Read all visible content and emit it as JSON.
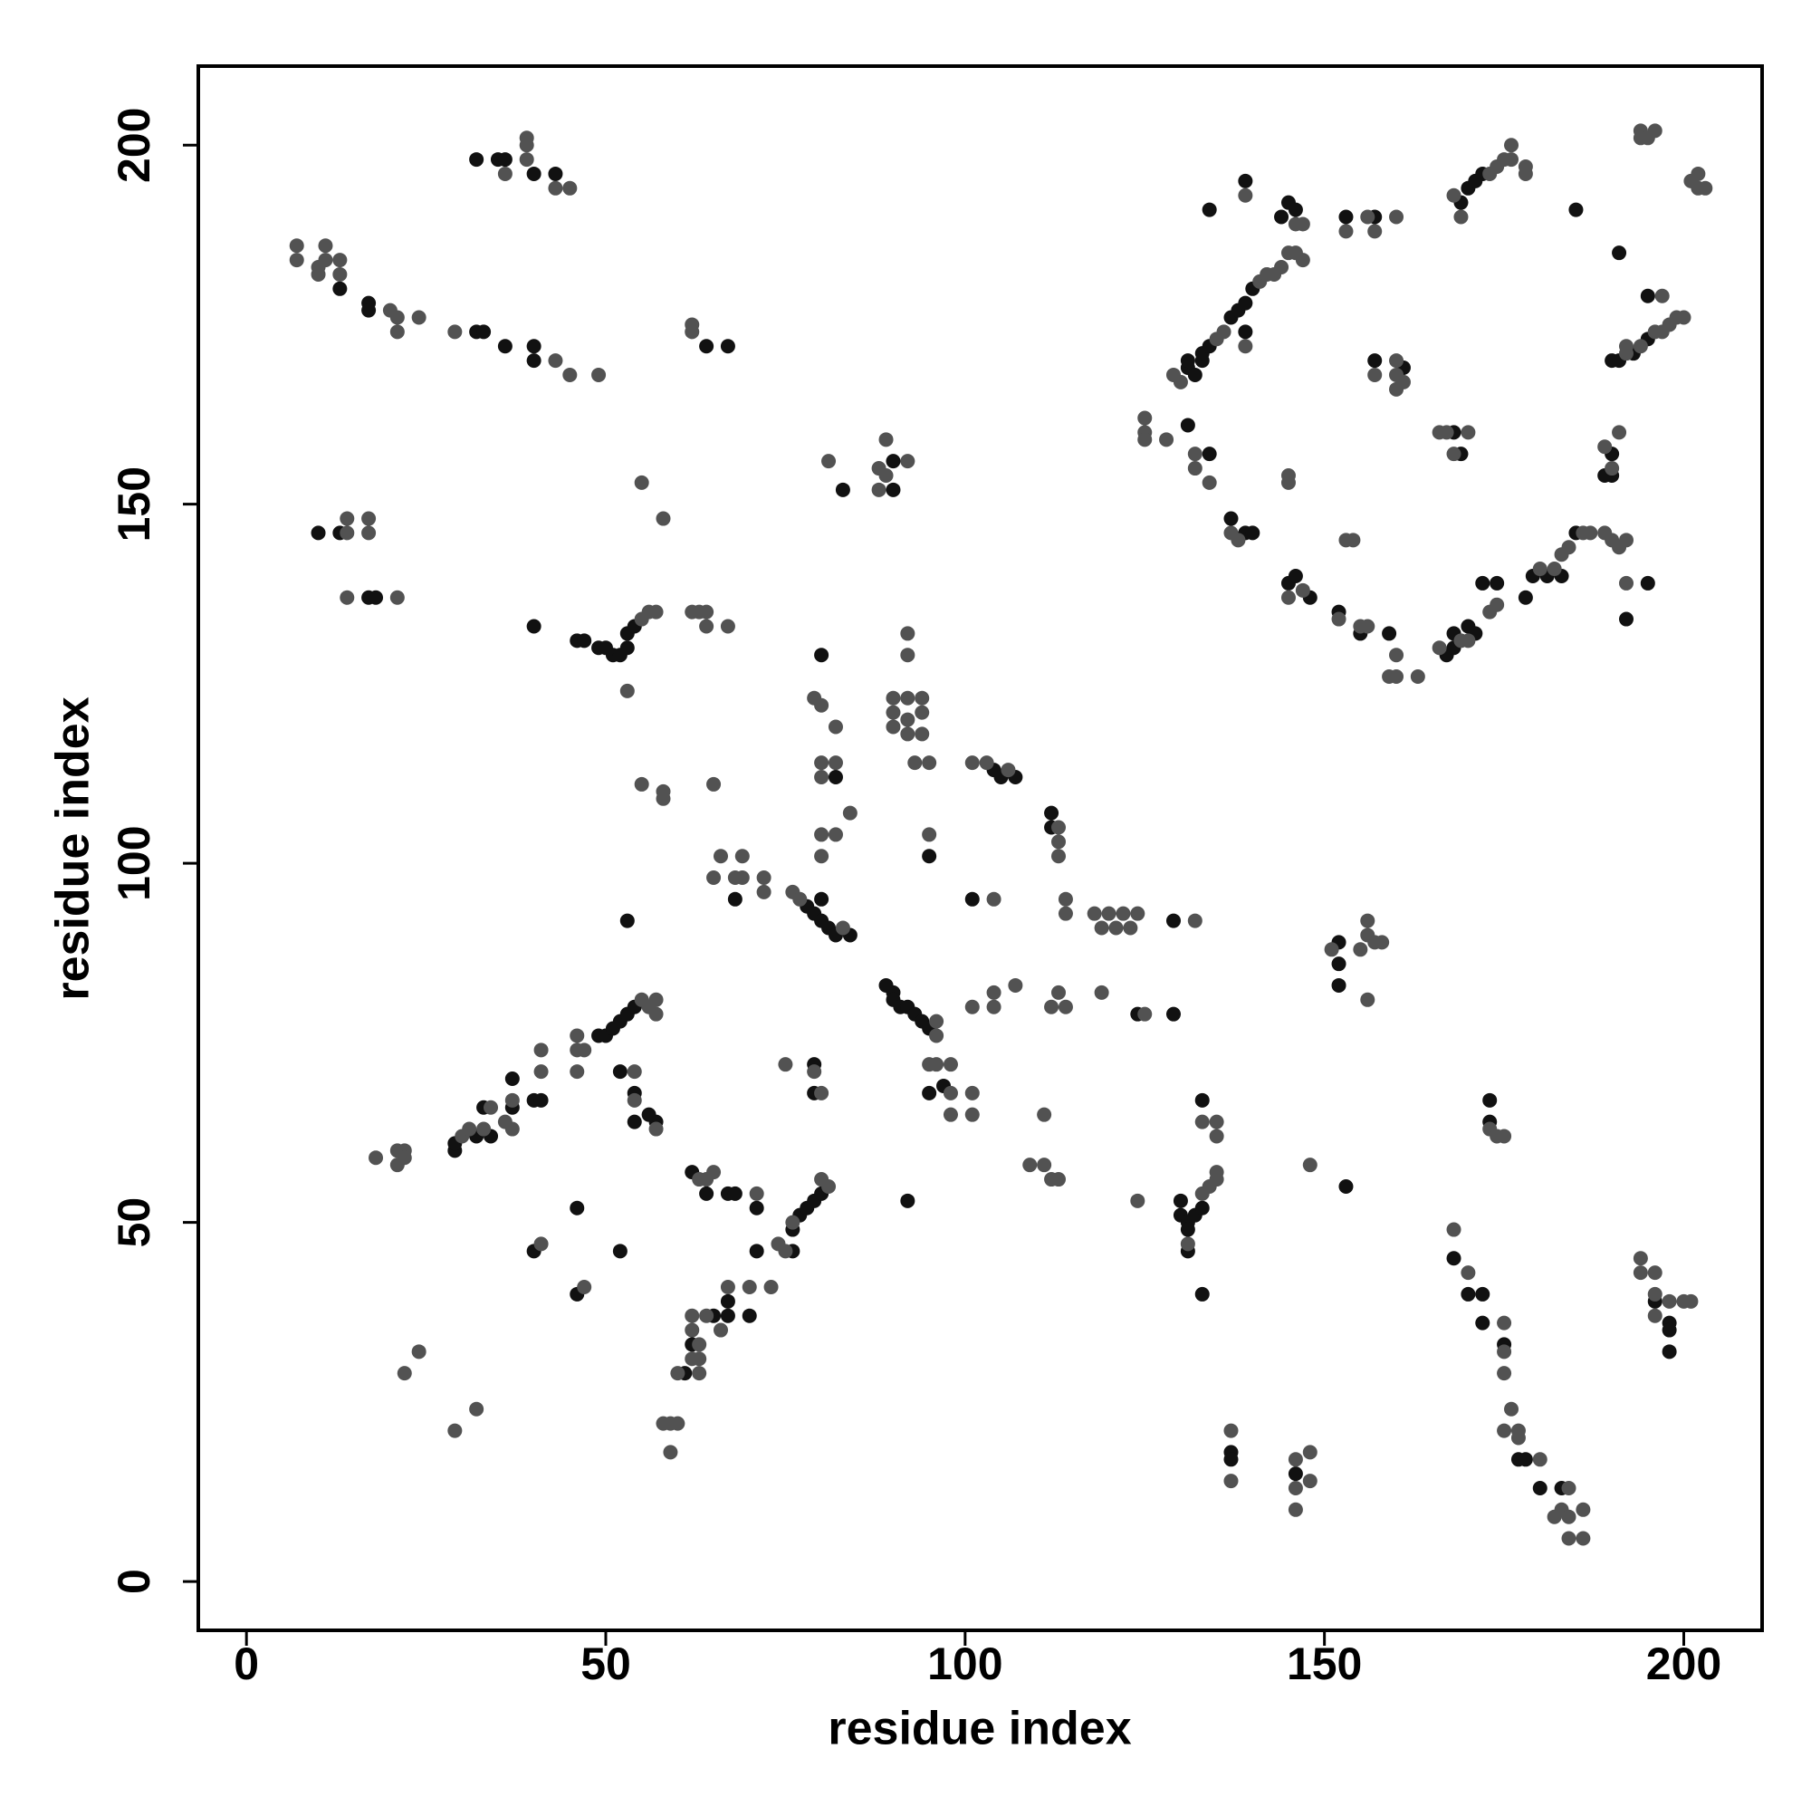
{
  "chart_data": {
    "type": "scatter",
    "xlabel": "residue index",
    "ylabel": "residue index",
    "xlim": [
      -6.7,
      210.9
    ],
    "ylim": [
      -6.8,
      211
    ],
    "xticks": [
      0,
      50,
      100,
      150,
      200
    ],
    "yticks": [
      0,
      50,
      100,
      150,
      200
    ],
    "grid": false,
    "series": [
      {
        "color": "#111111",
        "x": [
          32,
          35,
          36,
          40,
          43,
          10,
          13,
          17,
          18,
          13,
          17,
          17,
          32,
          33,
          36,
          40,
          40,
          40,
          46,
          47,
          49,
          50,
          51,
          52,
          53,
          53,
          54,
          64,
          67,
          83,
          90,
          90,
          80,
          82,
          95,
          104,
          105,
          107,
          112,
          112,
          101,
          78,
          79,
          80,
          80,
          81,
          82,
          84,
          68,
          89,
          90,
          90,
          91,
          92,
          93,
          94,
          95,
          95,
          129,
          53,
          33,
          37,
          40,
          41,
          49,
          50,
          51,
          52,
          53,
          54,
          52,
          54,
          29,
          62,
          64,
          67,
          68,
          71,
          46,
          52,
          40,
          46,
          76,
          77,
          78,
          79,
          80,
          76,
          71,
          67,
          70,
          67,
          65,
          62,
          61,
          79,
          79,
          92,
          130,
          130,
          131,
          131,
          132,
          133,
          131,
          133,
          133,
          137,
          137,
          146,
          152,
          152,
          152,
          153,
          168,
          170,
          172,
          172,
          173,
          173,
          175,
          177,
          178,
          180,
          183,
          196,
          198,
          198,
          198,
          131,
          131,
          132,
          133,
          133,
          134,
          137,
          138,
          139,
          140,
          134,
          139,
          144,
          145,
          146,
          131,
          134,
          137,
          139,
          140,
          145,
          146,
          148,
          139,
          152,
          155,
          159,
          157,
          157,
          161,
          168,
          169,
          167,
          168,
          168,
          170,
          171,
          172,
          174,
          178,
          179,
          181,
          183,
          185,
          192,
          195,
          169,
          170,
          171,
          172,
          185,
          191,
          190,
          191,
          193,
          195,
          195,
          190,
          189,
          190,
          153,
          129,
          124,
          97,
          57,
          54,
          29,
          32,
          34,
          37,
          56
        ],
        "y": [
          198,
          198,
          198,
          196,
          196,
          146,
          146,
          137,
          137,
          180,
          178,
          177,
          174,
          174,
          172,
          172,
          170,
          133,
          131,
          131,
          130,
          130,
          129,
          129,
          130,
          132,
          133,
          172,
          172,
          152,
          156,
          152,
          129,
          112,
          101,
          113,
          112,
          112,
          107,
          105,
          95,
          94,
          93,
          92,
          95,
          91,
          90,
          90,
          95,
          83,
          82,
          81,
          80,
          80,
          79,
          78,
          77,
          68,
          79,
          92,
          66,
          70,
          67,
          67,
          76,
          76,
          77,
          78,
          79,
          80,
          71,
          68,
          60,
          57,
          54,
          54,
          54,
          52,
          52,
          46,
          46,
          40,
          49,
          51,
          52,
          53,
          54,
          46,
          46,
          39,
          37,
          37,
          37,
          33,
          29,
          72,
          68,
          53,
          53,
          51,
          50,
          49,
          51,
          52,
          46,
          40,
          67,
          18,
          17,
          15,
          89,
          86,
          83,
          55,
          45,
          40,
          40,
          36,
          67,
          64,
          33,
          17,
          17,
          13,
          13,
          39,
          36,
          35,
          32,
          169,
          170,
          168,
          170,
          171,
          172,
          176,
          177,
          178,
          180,
          191,
          195,
          190,
          192,
          191,
          161,
          157,
          148,
          146,
          146,
          139,
          140,
          137,
          174,
          135,
          132,
          132,
          190,
          170,
          169,
          160,
          157,
          129,
          130,
          132,
          133,
          132,
          139,
          139,
          137,
          140,
          140,
          140,
          146,
          134,
          139,
          192,
          194,
          195,
          196,
          191,
          185,
          170,
          170,
          171,
          173,
          179,
          154,
          154,
          157,
          190,
          92,
          79,
          69,
          64,
          64,
          61,
          62,
          62,
          66,
          65
        ]
      },
      {
        "color": "#525252",
        "x": [
          7,
          7,
          10,
          10,
          11,
          11,
          13,
          13,
          20,
          21,
          21,
          24,
          29,
          43,
          45,
          49,
          36,
          39,
          39,
          39,
          43,
          45,
          14,
          14,
          17,
          17,
          14,
          21,
          55,
          56,
          57,
          62,
          63,
          64,
          64,
          67,
          53,
          55,
          58,
          62,
          62,
          55,
          58,
          58,
          65,
          81,
          88,
          88,
          89,
          89,
          92,
          92,
          92,
          79,
          80,
          90,
          90,
          90,
          92,
          92,
          92,
          94,
          94,
          94,
          93,
          95,
          82,
          80,
          82,
          80,
          84,
          80,
          82,
          80,
          95,
          101,
          103,
          106,
          113,
          113,
          113,
          114,
          114,
          104,
          76,
          77,
          83,
          66,
          69,
          65,
          68,
          69,
          72,
          72,
          96,
          96,
          95,
          96,
          98,
          98,
          101,
          98,
          101,
          101,
          104,
          104,
          107,
          113,
          114,
          112,
          111,
          109,
          111,
          112,
          113,
          118,
          119,
          120,
          121,
          122,
          123,
          124,
          132,
          119,
          125,
          124,
          30,
          31,
          33,
          34,
          36,
          37,
          37,
          41,
          41,
          46,
          46,
          46,
          47,
          55,
          56,
          57,
          57,
          54,
          54,
          57,
          18,
          21,
          21,
          22,
          22,
          63,
          64,
          65,
          71,
          41,
          47,
          75,
          74,
          76,
          80,
          81,
          73,
          70,
          67,
          66,
          64,
          62,
          62,
          62,
          60,
          63,
          63,
          63,
          58,
          59,
          60,
          59,
          22,
          24,
          29,
          32,
          75,
          80,
          79,
          133,
          134,
          131,
          135,
          135,
          133,
          135,
          135,
          137,
          137,
          146,
          146,
          146,
          148,
          148,
          148,
          151,
          155,
          156,
          156,
          157,
          158,
          156,
          168,
          170,
          173,
          174,
          175,
          175,
          175,
          175,
          175,
          176,
          177,
          177,
          180,
          182,
          183,
          184,
          184,
          184,
          186,
          186,
          194,
          194,
          196,
          196,
          196,
          198,
          200,
          201,
          125,
          125,
          125,
          128,
          129,
          130,
          135,
          136,
          141,
          142,
          143,
          144,
          145,
          146,
          147,
          139,
          146,
          147,
          132,
          132,
          134,
          137,
          138,
          145,
          147,
          145,
          145,
          139,
          152,
          155,
          156,
          160,
          160,
          159,
          163,
          153,
          154,
          153,
          156,
          157,
          160,
          157,
          160,
          160,
          160,
          161,
          166,
          167,
          168,
          170,
          166,
          169,
          170,
          173,
          174,
          180,
          182,
          183,
          184,
          186,
          187,
          189,
          190,
          191,
          192,
          192,
          168,
          169,
          173,
          174,
          175,
          176,
          176,
          178,
          178,
          192,
          192,
          194,
          196,
          197,
          198,
          199,
          200,
          197,
          189,
          190,
          191,
          194,
          194,
          195,
          196,
          201,
          202,
          203,
          202
        ],
        "y": [
          186,
          184,
          183,
          182,
          186,
          184,
          184,
          182,
          177,
          176,
          174,
          176,
          174,
          170,
          168,
          168,
          196,
          198,
          200,
          201,
          194,
          194,
          146,
          148,
          146,
          148,
          137,
          137,
          134,
          135,
          135,
          135,
          135,
          133,
          135,
          133,
          124,
          153,
          148,
          175,
          174,
          111,
          110,
          109,
          111,
          156,
          155,
          152,
          154,
          159,
          156,
          132,
          129,
          123,
          122,
          123,
          121,
          119,
          123,
          120,
          118,
          123,
          121,
          118,
          114,
          114,
          119,
          114,
          114,
          112,
          107,
          104,
          104,
          101,
          104,
          114,
          114,
          113,
          105,
          103,
          101,
          95,
          93,
          95,
          96,
          95,
          91,
          101,
          101,
          98,
          98,
          98,
          98,
          96,
          78,
          76,
          72,
          72,
          72,
          68,
          68,
          65,
          65,
          80,
          80,
          82,
          83,
          82,
          80,
          80,
          65,
          58,
          58,
          56,
          56,
          93,
          91,
          93,
          91,
          93,
          91,
          93,
          92,
          82,
          79,
          53,
          62,
          63,
          63,
          66,
          64,
          63,
          67,
          71,
          74,
          74,
          76,
          71,
          74,
          81,
          80,
          81,
          79,
          71,
          67,
          63,
          59,
          58,
          60,
          60,
          59,
          56,
          56,
          57,
          54,
          47,
          41,
          46,
          47,
          50,
          56,
          55,
          41,
          41,
          41,
          35,
          37,
          37,
          35,
          31,
          29,
          29,
          31,
          33,
          22,
          22,
          22,
          18,
          29,
          32,
          21,
          24,
          72,
          68,
          71,
          54,
          55,
          47,
          64,
          62,
          64,
          57,
          56,
          21,
          14,
          17,
          13,
          10,
          18,
          14,
          58,
          88,
          88,
          90,
          92,
          89,
          89,
          81,
          49,
          43,
          63,
          62,
          62,
          36,
          32,
          29,
          21,
          24,
          21,
          20,
          17,
          9,
          10,
          13,
          9,
          6,
          10,
          6,
          45,
          43,
          43,
          40,
          37,
          39,
          39,
          39,
          162,
          160,
          159,
          159,
          168,
          167,
          173,
          174,
          181,
          182,
          182,
          183,
          185,
          185,
          184,
          193,
          189,
          189,
          157,
          155,
          153,
          146,
          145,
          137,
          138,
          154,
          153,
          172,
          134,
          133,
          133,
          129,
          126,
          126,
          126,
          145,
          145,
          188,
          190,
          188,
          190,
          168,
          168,
          170,
          166,
          167,
          160,
          160,
          157,
          160,
          130,
          131,
          131,
          135,
          136,
          141,
          141,
          143,
          144,
          146,
          146,
          146,
          145,
          144,
          145,
          139,
          193,
          190,
          196,
          197,
          198,
          198,
          200,
          197,
          196,
          171,
          172,
          172,
          174,
          174,
          175,
          176,
          176,
          179,
          158,
          155,
          160,
          202,
          201,
          201,
          202,
          195,
          194,
          194,
          196
        ]
      }
    ]
  }
}
